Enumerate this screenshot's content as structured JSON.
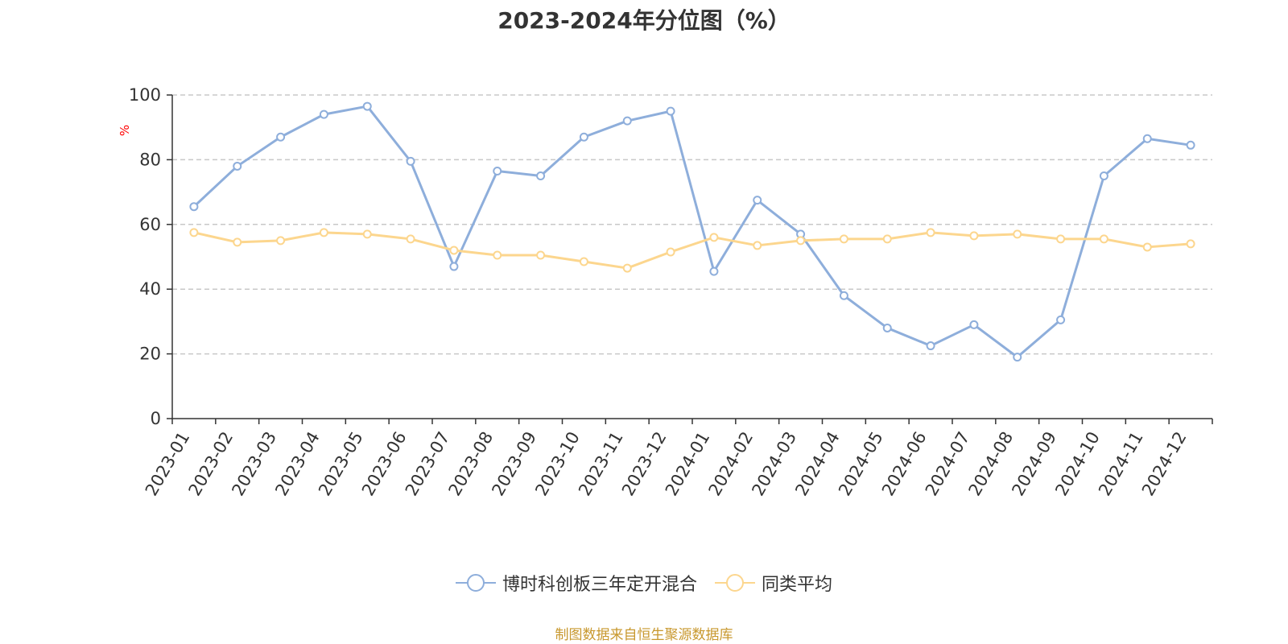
{
  "chart_data": {
    "type": "line",
    "title": "2023-2024年分位图（%）",
    "ylabel": "%",
    "xlabel": "",
    "ylim": [
      0,
      100
    ],
    "yticks": [
      0,
      20,
      40,
      60,
      80,
      100
    ],
    "grid": true,
    "legend_position": "bottom",
    "categories": [
      "2023-01",
      "2023-02",
      "2023-03",
      "2023-04",
      "2023-05",
      "2023-06",
      "2023-07",
      "2023-08",
      "2023-09",
      "2023-10",
      "2023-11",
      "2023-12",
      "2024-01",
      "2024-02",
      "2024-03",
      "2024-04",
      "2024-05",
      "2024-06",
      "2024-07",
      "2024-08",
      "2024-09",
      "2024-10",
      "2024-11",
      "2024-12"
    ],
    "series": [
      {
        "name": "博时科创板三年定开混合",
        "color": "#8eaedb",
        "values": [
          65.5,
          78.0,
          87.0,
          94.0,
          96.5,
          79.5,
          47.0,
          76.5,
          75.0,
          87.0,
          92.0,
          95.0,
          45.5,
          67.5,
          57.0,
          38.0,
          28.0,
          22.5,
          29.0,
          19.0,
          30.5,
          75.0,
          86.5,
          84.5
        ]
      },
      {
        "name": "同类平均",
        "color": "#fcd68e",
        "values": [
          57.5,
          54.5,
          55.0,
          57.5,
          57.0,
          55.5,
          52.0,
          50.5,
          50.5,
          48.5,
          46.5,
          51.5,
          56.0,
          53.5,
          55.0,
          55.5,
          55.5,
          57.5,
          56.5,
          57.0,
          55.5,
          55.5,
          53.0,
          54.0
        ]
      }
    ]
  },
  "footer": {
    "source": "制图数据来自恒生聚源数据库"
  }
}
